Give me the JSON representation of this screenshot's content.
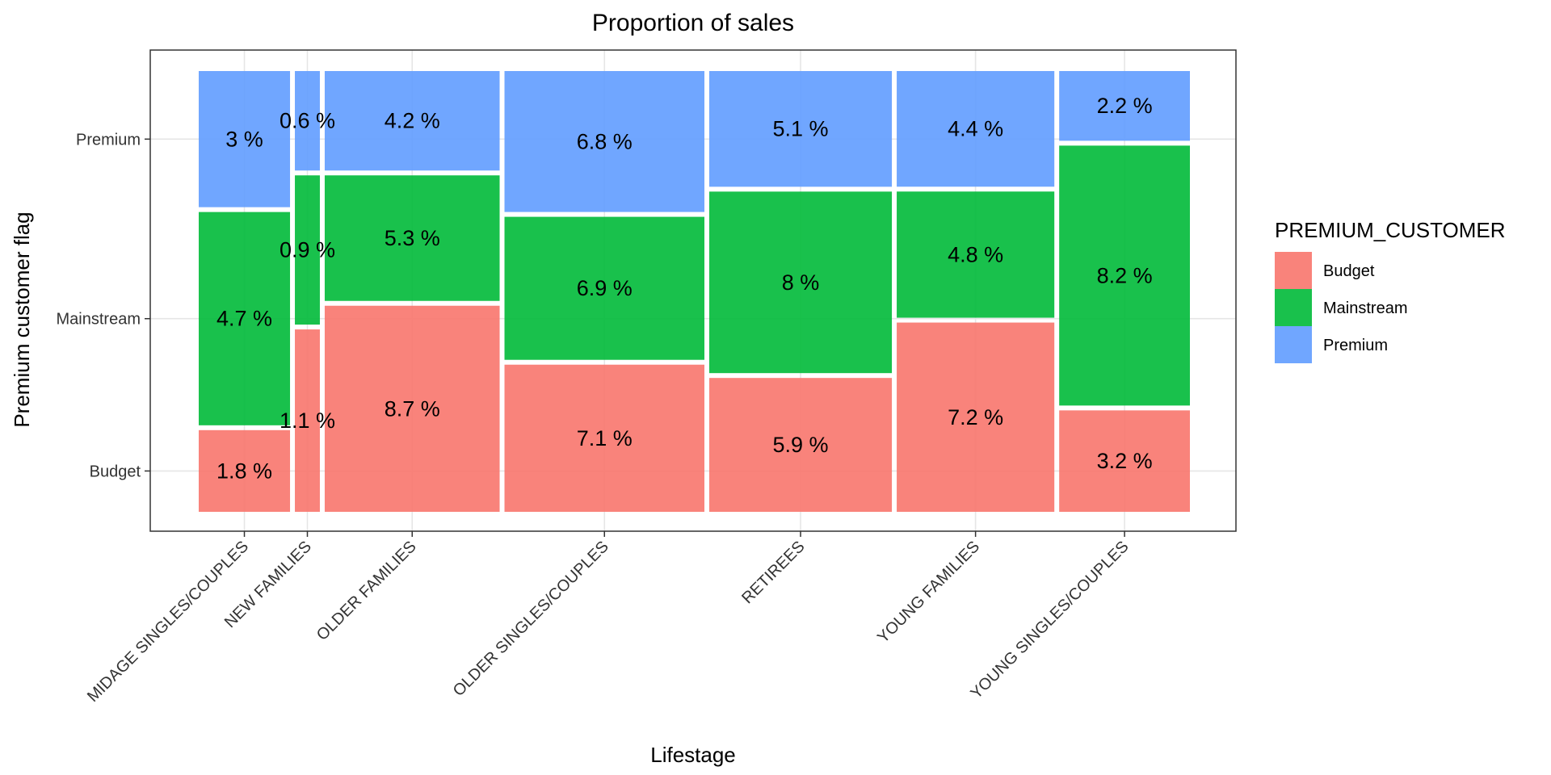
{
  "chart_data": {
    "type": "mosaic",
    "title": "Proportion of sales",
    "xlabel": "Lifestage",
    "ylabel": "Premium customer flag",
    "categories": [
      "MIDAGE SINGLES/COUPLES",
      "NEW FAMILIES",
      "OLDER FAMILIES",
      "OLDER SINGLES/COUPLES",
      "RETIREES",
      "YOUNG FAMILIES",
      "YOUNG SINGLES/COUPLES"
    ],
    "series": [
      {
        "name": "Budget",
        "color": "#F8766D",
        "values": [
          1.8,
          1.1,
          8.7,
          7.1,
          5.9,
          7.2,
          3.2
        ],
        "labels": [
          "1.8 %",
          "1.1 %",
          "8.7 %",
          "7.1 %",
          "5.9 %",
          "7.2 %",
          "3.2 %"
        ]
      },
      {
        "name": "Mainstream",
        "color": "#00BA38",
        "values": [
          4.7,
          0.9,
          5.3,
          6.9,
          8.0,
          4.8,
          8.2
        ],
        "labels": [
          "4.7 %",
          "0.9 %",
          "5.3 %",
          "6.9 %",
          "8 %",
          "4.8 %",
          "8.2 %"
        ]
      },
      {
        "name": "Premium",
        "color": "#619CFF",
        "values": [
          3.0,
          0.6,
          4.2,
          6.8,
          5.1,
          4.4,
          2.2
        ],
        "labels": [
          "3 %",
          "0.6 %",
          "4.2 %",
          "6.8 %",
          "5.1 %",
          "4.4 %",
          "2.2 %"
        ]
      }
    ],
    "y_ticks": [
      "Budget",
      "Mainstream",
      "Premium"
    ],
    "legend": {
      "title": "PREMIUM_CUSTOMER",
      "position": "right",
      "entries": [
        "Budget",
        "Mainstream",
        "Premium"
      ]
    },
    "grid": true
  }
}
